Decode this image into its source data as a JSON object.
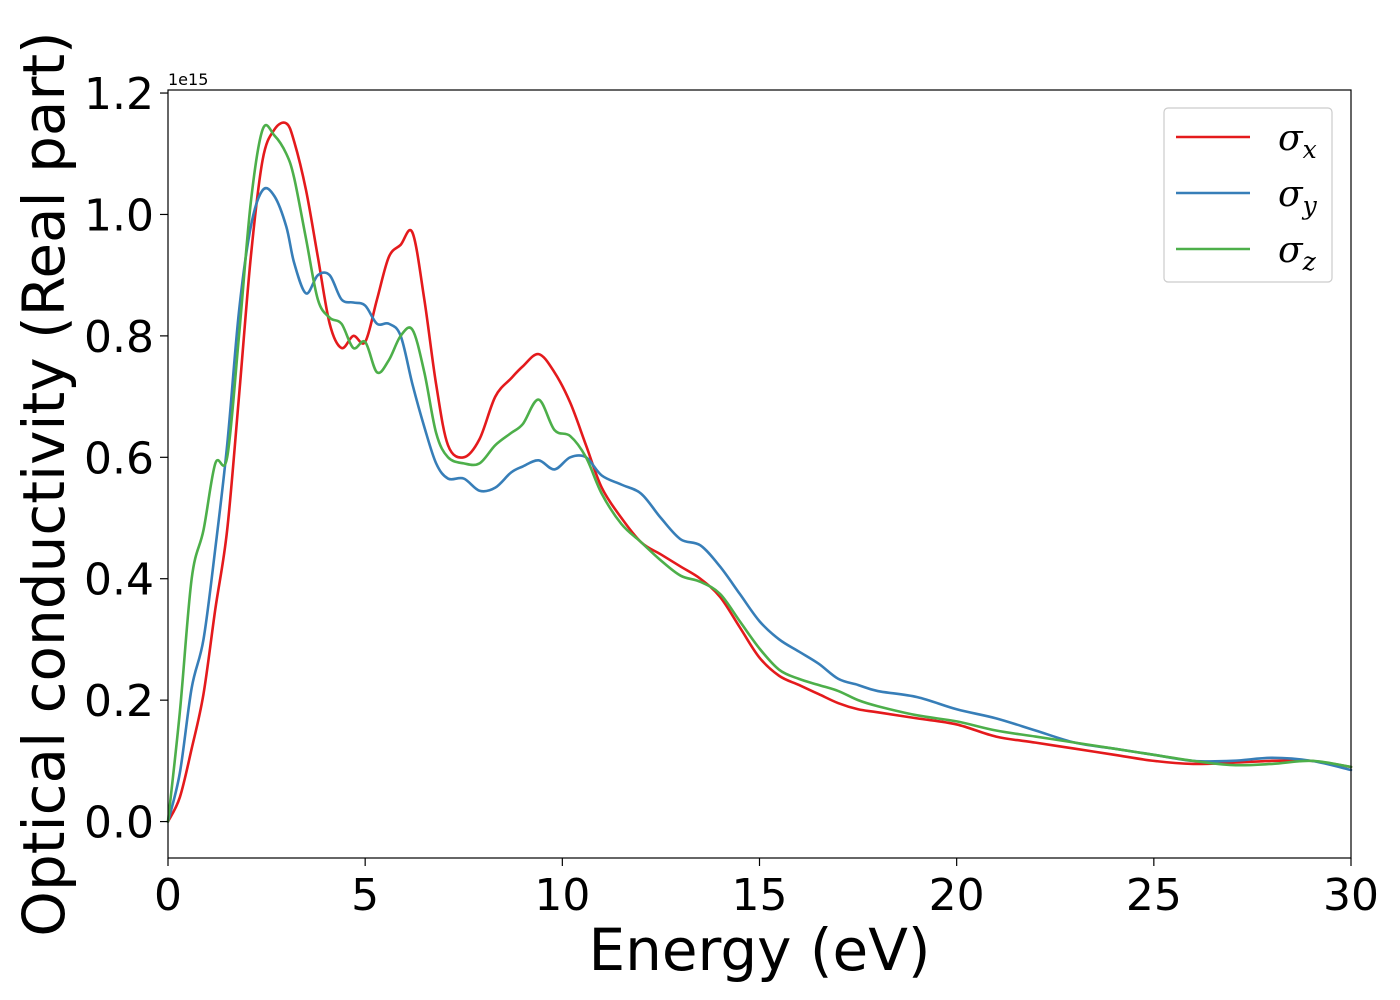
{
  "chart_data": {
    "type": "line",
    "xlabel": "Energy (eV)",
    "ylabel": "Optical conductivity (Real part)",
    "y_offset_text": "1e15",
    "y_multiplier": 1000000000000000.0,
    "xlim": [
      0,
      30
    ],
    "ylim": [
      -0.06,
      1.205
    ],
    "x_ticks": [
      0,
      5,
      10,
      15,
      20,
      25,
      30
    ],
    "x_tick_labels": [
      "0",
      "5",
      "10",
      "15",
      "20",
      "25",
      "30"
    ],
    "y_ticks": [
      0.0,
      0.2,
      0.4,
      0.6,
      0.8,
      1.0,
      1.2
    ],
    "y_tick_labels": [
      "0.0",
      "0.2",
      "0.4",
      "0.6",
      "0.8",
      "1.0",
      "1.2"
    ],
    "grid": false,
    "legend_position": "top-right",
    "series": [
      {
        "name": "σx",
        "symbol": "σ",
        "subscript": "x",
        "color": "#e41a1c",
        "x": [
          0,
          0.3,
          0.6,
          0.9,
          1.2,
          1.5,
          1.8,
          2.1,
          2.4,
          2.7,
          3.0,
          3.2,
          3.5,
          3.8,
          4.1,
          4.4,
          4.7,
          5.0,
          5.3,
          5.6,
          5.9,
          6.2,
          6.5,
          6.8,
          7.1,
          7.5,
          7.9,
          8.3,
          8.7,
          9.0,
          9.4,
          9.8,
          10.2,
          10.6,
          11.0,
          11.5,
          12.0,
          12.5,
          13.0,
          13.5,
          14.0,
          14.5,
          15.0,
          15.5,
          16.0,
          16.5,
          17.0,
          17.5,
          18.0,
          19.0,
          20.0,
          21.0,
          22.0,
          23.0,
          24.0,
          25.0,
          26.0,
          27.0,
          28.0,
          29.0,
          30.0
        ],
        "values": [
          0.0,
          0.04,
          0.12,
          0.21,
          0.35,
          0.48,
          0.7,
          0.93,
          1.09,
          1.14,
          1.15,
          1.12,
          1.04,
          0.93,
          0.82,
          0.78,
          0.8,
          0.79,
          0.86,
          0.93,
          0.95,
          0.97,
          0.86,
          0.72,
          0.62,
          0.6,
          0.63,
          0.7,
          0.73,
          0.75,
          0.77,
          0.74,
          0.69,
          0.62,
          0.55,
          0.5,
          0.46,
          0.44,
          0.42,
          0.4,
          0.37,
          0.32,
          0.27,
          0.24,
          0.225,
          0.21,
          0.195,
          0.185,
          0.18,
          0.17,
          0.16,
          0.14,
          0.13,
          0.12,
          0.11,
          0.1,
          0.095,
          0.097,
          0.1,
          0.1,
          0.09
        ]
      },
      {
        "name": "σy",
        "symbol": "σ",
        "subscript": "y",
        "color": "#377eb8",
        "x": [
          0,
          0.3,
          0.6,
          0.9,
          1.2,
          1.5,
          1.8,
          2.1,
          2.4,
          2.7,
          3.0,
          3.2,
          3.5,
          3.8,
          4.1,
          4.4,
          4.7,
          5.0,
          5.3,
          5.6,
          5.9,
          6.2,
          6.5,
          6.8,
          7.1,
          7.5,
          7.9,
          8.3,
          8.7,
          9.0,
          9.4,
          9.8,
          10.2,
          10.6,
          11.0,
          11.5,
          12.0,
          12.5,
          13.0,
          13.5,
          14.0,
          14.5,
          15.0,
          15.5,
          16.0,
          16.5,
          17.0,
          17.5,
          18.0,
          19.0,
          20.0,
          21.0,
          22.0,
          23.0,
          24.0,
          25.0,
          26.0,
          27.0,
          28.0,
          29.0,
          30.0
        ],
        "values": [
          0.0,
          0.08,
          0.22,
          0.3,
          0.45,
          0.62,
          0.84,
          0.98,
          1.04,
          1.03,
          0.98,
          0.92,
          0.87,
          0.9,
          0.9,
          0.86,
          0.855,
          0.85,
          0.82,
          0.82,
          0.8,
          0.72,
          0.65,
          0.59,
          0.565,
          0.565,
          0.545,
          0.55,
          0.575,
          0.585,
          0.595,
          0.58,
          0.6,
          0.6,
          0.57,
          0.555,
          0.54,
          0.5,
          0.465,
          0.455,
          0.42,
          0.375,
          0.33,
          0.3,
          0.28,
          0.26,
          0.235,
          0.225,
          0.215,
          0.205,
          0.185,
          0.17,
          0.15,
          0.13,
          0.12,
          0.11,
          0.1,
          0.1,
          0.105,
          0.1,
          0.085
        ]
      },
      {
        "name": "σz",
        "symbol": "σ",
        "subscript": "z",
        "color": "#4daf4a",
        "x": [
          0,
          0.3,
          0.6,
          0.9,
          1.2,
          1.5,
          1.8,
          2.1,
          2.4,
          2.7,
          3.0,
          3.2,
          3.5,
          3.8,
          4.1,
          4.4,
          4.7,
          5.0,
          5.3,
          5.6,
          5.9,
          6.2,
          6.5,
          6.8,
          7.1,
          7.5,
          7.9,
          8.3,
          8.7,
          9.0,
          9.4,
          9.8,
          10.2,
          10.6,
          11.0,
          11.5,
          12.0,
          12.5,
          13.0,
          13.5,
          14.0,
          14.5,
          15.0,
          15.5,
          16.0,
          16.5,
          17.0,
          17.5,
          18.0,
          19.0,
          20.0,
          21.0,
          22.0,
          23.0,
          24.0,
          25.0,
          26.0,
          27.0,
          28.0,
          29.0,
          30.0
        ],
        "values": [
          0.0,
          0.18,
          0.4,
          0.48,
          0.59,
          0.6,
          0.8,
          1.02,
          1.14,
          1.13,
          1.1,
          1.06,
          0.96,
          0.86,
          0.83,
          0.82,
          0.78,
          0.79,
          0.74,
          0.76,
          0.8,
          0.81,
          0.74,
          0.64,
          0.6,
          0.59,
          0.59,
          0.62,
          0.64,
          0.655,
          0.695,
          0.645,
          0.635,
          0.6,
          0.54,
          0.49,
          0.46,
          0.43,
          0.405,
          0.395,
          0.375,
          0.33,
          0.285,
          0.25,
          0.235,
          0.225,
          0.215,
          0.2,
          0.19,
          0.175,
          0.165,
          0.15,
          0.14,
          0.13,
          0.12,
          0.11,
          0.1,
          0.093,
          0.095,
          0.1,
          0.09
        ]
      }
    ]
  }
}
